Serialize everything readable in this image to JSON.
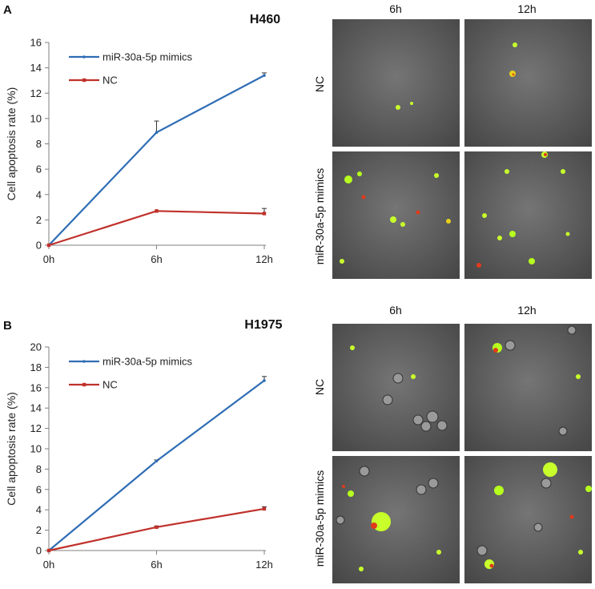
{
  "panels": {
    "A": {
      "letter": "A",
      "micro": {
        "col_labels": [
          "6h",
          "12h"
        ],
        "row_labels": [
          "NC",
          "miR-30a-5p mimics"
        ]
      }
    },
    "B": {
      "letter": "B",
      "micro": {
        "col_labels": [
          "6h",
          "12h"
        ],
        "row_labels": [
          "NC",
          "miR-30a-5p mimics"
        ]
      }
    }
  },
  "colors": {
    "mimics": "#2F6DB5",
    "nc": "#C0312B",
    "axis": "#7f7f7f"
  },
  "chart_data": [
    {
      "type": "line",
      "title": "H460",
      "xlabel": "",
      "ylabel": "Cell apoptosis rate (%)",
      "categories": [
        "0h",
        "6h",
        "12h"
      ],
      "ylim": [
        0,
        16
      ],
      "yticks": [
        0,
        2,
        4,
        6,
        8,
        10,
        12,
        14,
        16
      ],
      "ytick_labels": [
        "0",
        "2",
        "4",
        "6",
        "8",
        "10",
        "12",
        "14",
        "16"
      ],
      "legend": "top-left",
      "series": [
        {
          "name": "miR-30a-5p mimics",
          "values": [
            0,
            8.9,
            13.4
          ],
          "errors": [
            0,
            0.9,
            0.2
          ]
        },
        {
          "name": "NC",
          "values": [
            0,
            2.7,
            2.5
          ],
          "errors": [
            0,
            0,
            0.4
          ]
        }
      ]
    },
    {
      "type": "line",
      "title": "H1975",
      "xlabel": "",
      "ylabel": "Cell apoptosis rate (%)",
      "categories": [
        "0h",
        "6h",
        "12h"
      ],
      "ylim": [
        0,
        20
      ],
      "yticks": [
        0,
        2,
        4,
        6,
        8,
        10,
        12,
        14,
        16,
        18,
        20
      ],
      "ytick_labels": [
        "0",
        "2",
        "4",
        "6",
        "8",
        "10",
        "12",
        "14",
        "16",
        "18",
        "20"
      ],
      "legend": "top-left",
      "series": [
        {
          "name": "miR-30a-5p mimics",
          "values": [
            0,
            8.8,
            16.7
          ],
          "errors": [
            0,
            0.1,
            0.4
          ]
        },
        {
          "name": "NC",
          "values": [
            0,
            2.3,
            4.1
          ],
          "errors": [
            0,
            0.1,
            0.2
          ]
        }
      ]
    }
  ]
}
